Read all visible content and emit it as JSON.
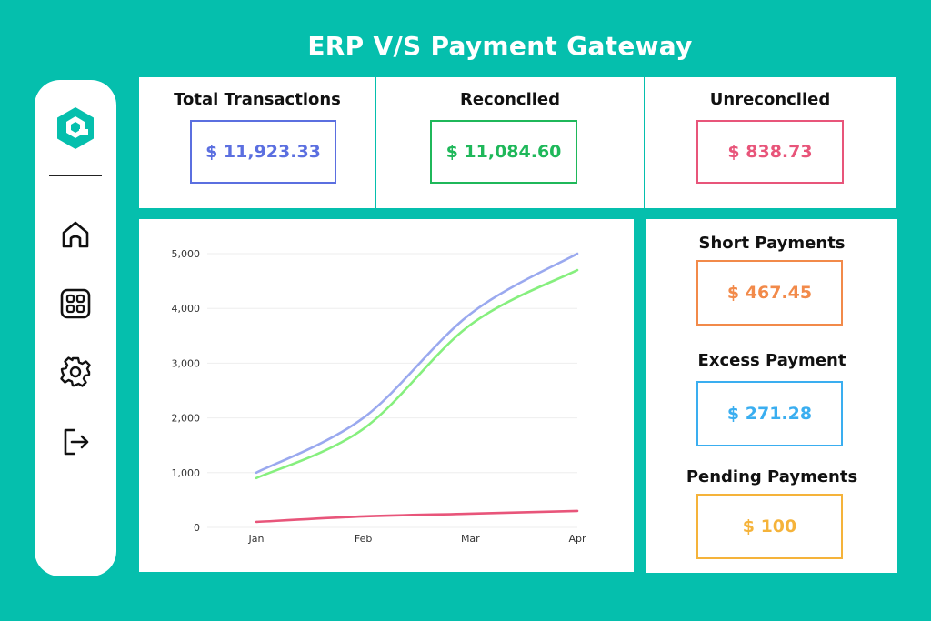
{
  "page": {
    "title": "ERP V/S Payment Gateway"
  },
  "sidebar": {
    "logo": "app-logo",
    "items": [
      {
        "icon": "home-icon"
      },
      {
        "icon": "dashboard-grid-icon"
      },
      {
        "icon": "gear-icon"
      },
      {
        "icon": "logout-icon"
      }
    ]
  },
  "stats": [
    {
      "label": "Total Transactions",
      "value": "$ 11,923.33",
      "color": "#5b6fe0"
    },
    {
      "label": "Reconciled",
      "value": "$ 11,084.60",
      "color": "#1fb85a"
    },
    {
      "label": "Unreconciled",
      "value": "$ 838.73",
      "color": "#e8557a"
    }
  ],
  "side_stats": [
    {
      "label": "Short Payments",
      "value": "$ 467.45",
      "color": "#f28a4a"
    },
    {
      "label": "Excess Payment",
      "value": "$ 271.28",
      "color": "#3aaef0"
    },
    {
      "label": "Pending Payments",
      "value": "$ 100",
      "color": "#f5b33a"
    }
  ],
  "chart_data": {
    "type": "line",
    "x": [
      "Jan",
      "Feb",
      "Mar",
      "Apr"
    ],
    "ylim": [
      0,
      5000
    ],
    "yticks": [
      "0",
      "1,000",
      "2,000",
      "3,000",
      "4,000",
      "5,000"
    ],
    "grid": true,
    "series": [
      {
        "values": [
          1000,
          2000,
          3900,
          5000
        ],
        "color": "#9aa9ef"
      },
      {
        "values": [
          900,
          1800,
          3700,
          4700
        ],
        "color": "#86ef7e"
      },
      {
        "values": [
          100,
          200,
          250,
          300
        ],
        "color": "#e8557a"
      }
    ]
  }
}
